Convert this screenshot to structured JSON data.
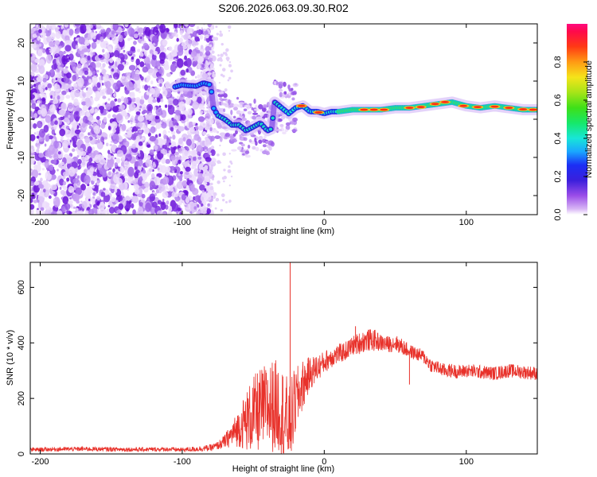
{
  "figure": {
    "title": "S206.2026.063.09.30.R02"
  },
  "chart_data": [
    {
      "type": "heatmap",
      "panel": "spectrogram",
      "xlabel": "Height of straight line (km)",
      "ylabel": "Frequency (Hz)",
      "xlim": [
        -207,
        150
      ],
      "ylim": [
        -25,
        25
      ],
      "xticks": [
        "-200",
        "-100",
        "0",
        "100"
      ],
      "xtick_values": [
        -200,
        -100,
        0,
        100
      ],
      "yticks": [
        "-20",
        "-10",
        "0",
        "10",
        "20"
      ],
      "ytick_values": [
        -20,
        -10,
        0,
        10,
        20
      ],
      "ridge": {
        "x": [
          -105,
          -100,
          -95,
          -90,
          -85,
          -80,
          -78,
          -75,
          -70,
          -65,
          -60,
          -55,
          -50,
          -45,
          -40,
          -37,
          -35,
          -30,
          -25,
          -20,
          -15,
          -10,
          -5,
          0,
          5,
          10,
          20,
          30,
          40,
          50,
          60,
          70,
          80,
          90,
          100,
          110,
          120,
          130,
          140,
          150
        ],
        "y": [
          8.5,
          9,
          8.8,
          8.7,
          9.5,
          9,
          3,
          1,
          0,
          -1.5,
          -1.5,
          -3,
          -2,
          -1,
          -3,
          -2.5,
          4.5,
          3,
          1.5,
          3,
          3.5,
          2,
          2,
          1.5,
          2,
          2,
          2.5,
          2.5,
          2.5,
          3,
          3,
          3.5,
          4,
          4.5,
          3.5,
          3,
          3.5,
          3,
          2.5,
          2.5
        ]
      },
      "colorbar": {
        "label": "Normalized spectral amplitude",
        "range": [
          0,
          1
        ],
        "ticks": [
          "0.0",
          "0.2",
          "0.4",
          "0.6",
          "0.8"
        ],
        "tick_values": [
          0,
          0.2,
          0.4,
          0.6,
          0.8
        ]
      }
    },
    {
      "type": "line",
      "panel": "snr",
      "xlabel": "Height of straight line (km)",
      "ylabel": "SNR (10 * v/v)",
      "xlim": [
        -207,
        150
      ],
      "ylim": [
        0,
        690
      ],
      "xticks": [
        "-200",
        "-100",
        "0",
        "100"
      ],
      "xtick_values": [
        -200,
        -100,
        0,
        100
      ],
      "yticks": [
        "0",
        "200",
        "400",
        "600"
      ],
      "ytick_values": [
        0,
        200,
        400,
        600
      ],
      "series": [
        {
          "name": "SNR",
          "color": "#e8312a",
          "x": [
            -207,
            -190,
            -170,
            -150,
            -130,
            -110,
            -100,
            -90,
            -80,
            -75,
            -70,
            -65,
            -60,
            -55,
            -50,
            -45,
            -40,
            -35,
            -30,
            -27,
            -25,
            -22,
            -20,
            -15,
            -10,
            -5,
            0,
            5,
            10,
            15,
            20,
            25,
            30,
            35,
            40,
            45,
            50,
            55,
            60,
            65,
            70,
            75,
            80,
            85,
            90,
            95,
            100,
            110,
            120,
            130,
            140,
            150
          ],
          "y": [
            15,
            17,
            18,
            17,
            16,
            17,
            15,
            18,
            22,
            30,
            45,
            70,
            95,
            120,
            140,
            160,
            170,
            175,
            160,
            120,
            100,
            150,
            190,
            250,
            290,
            310,
            330,
            350,
            360,
            370,
            390,
            400,
            410,
            410,
            400,
            395,
            400,
            385,
            370,
            360,
            350,
            320,
            310,
            300,
            300,
            295,
            300,
            295,
            290,
            300,
            295,
            290
          ],
          "amp": [
            8,
            8,
            8,
            8,
            8,
            8,
            8,
            10,
            12,
            15,
            25,
            45,
            70,
            110,
            140,
            150,
            160,
            170,
            160,
            180,
            130,
            150,
            120,
            90,
            60,
            50,
            40,
            40,
            35,
            35,
            35,
            40,
            40,
            40,
            30,
            30,
            30,
            30,
            25,
            25,
            25,
            25,
            25,
            25,
            25,
            25,
            25,
            25,
            25,
            25,
            25,
            25
          ]
        }
      ],
      "annotations": [
        {
          "x": -24,
          "y": 690,
          "note": "peak"
        },
        {
          "x": 22,
          "y": 460,
          "note": "peak"
        },
        {
          "x": 60,
          "y": 250,
          "note": "dip"
        }
      ]
    }
  ]
}
